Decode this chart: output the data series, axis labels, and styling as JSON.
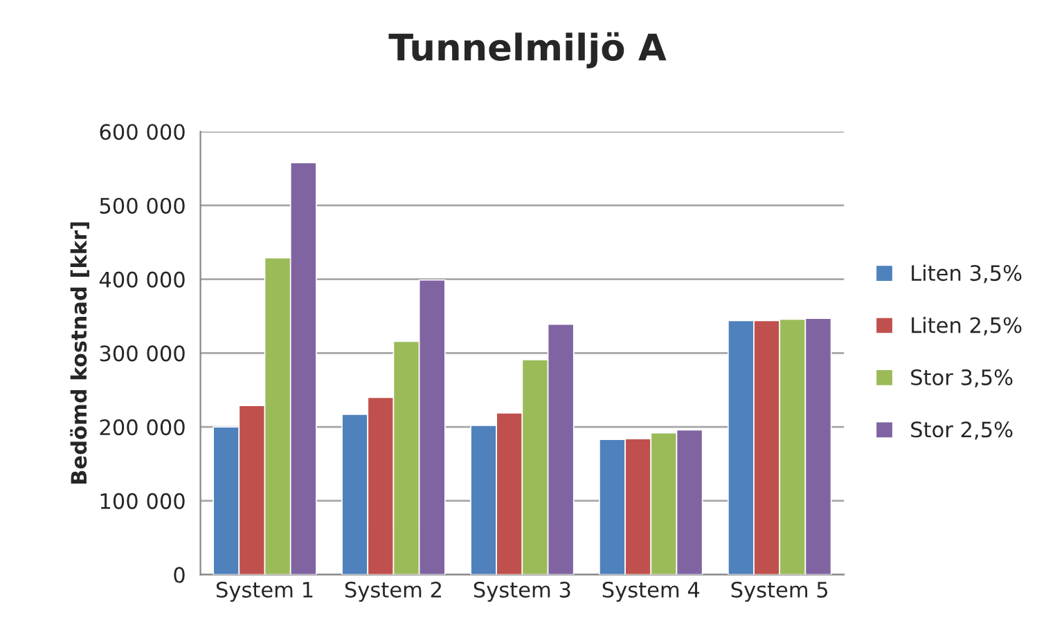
{
  "chart_data": {
    "type": "bar",
    "title": "Tunnelmiljö A",
    "ylabel": "Bedömd kostnad [kkr]",
    "categories": [
      "System 1",
      "System 2",
      "System 3",
      "System 4",
      "System 5"
    ],
    "series": [
      {
        "name": "Liten 3,5%",
        "color": "#4f81bd",
        "values": [
          200000,
          217000,
          202000,
          183000,
          344000
        ]
      },
      {
        "name": "Liten 2,5%",
        "color": "#c0504d",
        "values": [
          229000,
          240000,
          219000,
          184000,
          344000
        ]
      },
      {
        "name": "Stor 3,5%",
        "color": "#9bbb59",
        "values": [
          429000,
          316000,
          291000,
          192000,
          346000
        ]
      },
      {
        "name": "Stor 2,5%",
        "color": "#8064a2",
        "values": [
          558000,
          399000,
          339000,
          196000,
          347000
        ]
      }
    ],
    "ylim": [
      0,
      600000
    ],
    "yticks": [
      {
        "value": 0,
        "label": "0"
      },
      {
        "value": 100000,
        "label": "100 000"
      },
      {
        "value": 200000,
        "label": "200 000"
      },
      {
        "value": 300000,
        "label": "300 000"
      },
      {
        "value": 400000,
        "label": "400 000"
      },
      {
        "value": 500000,
        "label": "500 000"
      },
      {
        "value": 600000,
        "label": "600 000"
      }
    ],
    "grid": "y",
    "legend": "right"
  }
}
